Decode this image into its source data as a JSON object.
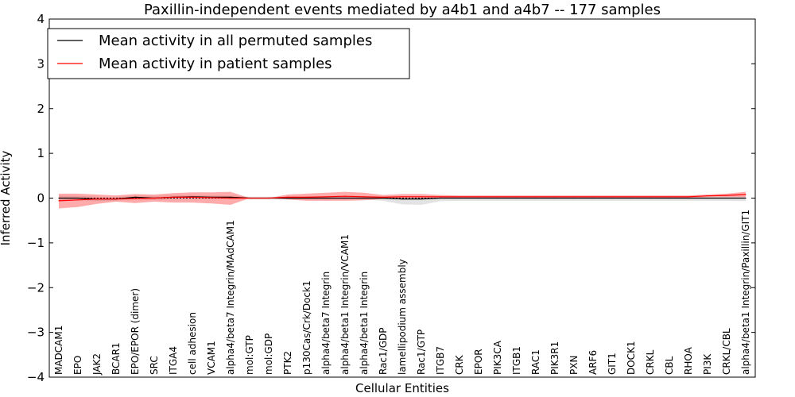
{
  "chart_data": {
    "type": "line",
    "title": "Paxillin-independent events mediated by a4b1 and a4b7 -- 177 samples",
    "xlabel": "Cellular Entities",
    "ylabel": "Inferred Activity",
    "ylim": [
      -4,
      4
    ],
    "yticks": [
      4,
      3,
      2,
      1,
      0,
      -1,
      -2,
      -3,
      -4
    ],
    "ytick_labels": [
      "4",
      "3",
      "2",
      "1",
      "0",
      "−1",
      "−2",
      "−3",
      "−4"
    ],
    "categories": [
      "MADCAM1",
      "EPO",
      "JAK2",
      "BCAR1",
      "EPO/EPOR (dimer)",
      "SRC",
      "ITGA4",
      "cell adhesion",
      "VCAM1",
      "alpha4/beta7 Integrin/MAdCAM1",
      "mol:GTP",
      "mol:GDP",
      "PTK2",
      "p130Cas/Crk/Dock1",
      "alpha4/beta7 Integrin",
      "alpha4/beta1 Integrin/VCAM1",
      "alpha4/beta1 Integrin",
      "Rac1/GDP",
      "lamellipodium assembly",
      "Rac1/GTP",
      "ITGB7",
      "CRK",
      "EPOR",
      "PIK3CA",
      "ITGB1",
      "RAC1",
      "PIK3R1",
      "PXN",
      "ARF6",
      "GIT1",
      "DOCK1",
      "CRKL",
      "CBL",
      "RHOA",
      "PI3K",
      "CRKL/CBL",
      "alpha4/beta1 Integrin/Paxillin/GIT1"
    ],
    "legend": {
      "position": "top-left",
      "entries": [
        {
          "label": "Mean activity in all permuted samples",
          "color": "#000000"
        },
        {
          "label": "Mean activity in patient samples",
          "color": "#ff0000"
        }
      ]
    },
    "series": [
      {
        "name": "Mean activity in all permuted samples",
        "color": "#000000",
        "values": [
          0.0,
          0.0,
          -0.02,
          -0.02,
          0.02,
          0.0,
          0.02,
          0.03,
          0.02,
          0.02,
          0.0,
          0.0,
          0.0,
          0.0,
          0.0,
          0.0,
          0.0,
          0.0,
          -0.02,
          -0.02,
          0.0,
          0.0,
          0.0,
          0.0,
          0.0,
          0.0,
          0.0,
          0.0,
          0.0,
          0.0,
          0.0,
          0.0,
          0.0,
          0.0,
          0.0,
          0.0,
          0.0
        ],
        "band_upper": [
          0.06,
          0.05,
          0.03,
          0.02,
          0.06,
          0.05,
          0.06,
          0.07,
          0.06,
          0.06,
          0.03,
          0.03,
          0.03,
          0.03,
          0.03,
          0.03,
          0.03,
          0.03,
          0.04,
          0.04,
          0.03,
          0.02,
          0.02,
          0.02,
          0.02,
          0.02,
          0.02,
          0.02,
          0.02,
          0.02,
          0.02,
          0.02,
          0.02,
          0.02,
          0.02,
          0.02,
          0.02
        ],
        "band_lower": [
          -0.06,
          -0.05,
          -0.07,
          -0.06,
          -0.02,
          -0.05,
          -0.02,
          -0.01,
          -0.02,
          -0.02,
          -0.03,
          -0.03,
          -0.03,
          -0.03,
          -0.03,
          -0.03,
          -0.03,
          -0.06,
          -0.14,
          -0.15,
          -0.07,
          -0.06,
          -0.06,
          -0.06,
          -0.06,
          -0.06,
          -0.06,
          -0.06,
          -0.06,
          -0.06,
          -0.06,
          -0.06,
          -0.06,
          -0.06,
          -0.06,
          -0.06,
          -0.07
        ]
      },
      {
        "name": "Mean activity in patient samples",
        "color": "#ff0000",
        "values": [
          -0.06,
          -0.04,
          -0.02,
          -0.02,
          -0.01,
          0.0,
          0.02,
          0.02,
          0.01,
          0.0,
          0.0,
          0.0,
          0.02,
          0.02,
          0.03,
          0.04,
          0.03,
          0.02,
          0.03,
          0.03,
          0.03,
          0.03,
          0.03,
          0.03,
          0.03,
          0.03,
          0.03,
          0.03,
          0.03,
          0.03,
          0.03,
          0.03,
          0.03,
          0.03,
          0.05,
          0.06,
          0.08
        ],
        "band_upper": [
          0.1,
          0.1,
          0.08,
          0.06,
          0.09,
          0.08,
          0.11,
          0.13,
          0.13,
          0.14,
          0.0,
          0.0,
          0.08,
          0.1,
          0.12,
          0.14,
          0.12,
          0.07,
          0.09,
          0.09,
          0.07,
          0.06,
          0.06,
          0.06,
          0.06,
          0.06,
          0.06,
          0.06,
          0.06,
          0.06,
          0.06,
          0.06,
          0.06,
          0.06,
          0.08,
          0.1,
          0.14
        ],
        "band_lower": [
          -0.23,
          -0.2,
          -0.13,
          -0.08,
          -0.11,
          -0.08,
          -0.1,
          -0.1,
          -0.12,
          -0.15,
          0.0,
          0.0,
          -0.03,
          -0.06,
          -0.06,
          -0.06,
          -0.05,
          -0.02,
          0.0,
          0.0,
          0.0,
          0.0,
          0.0,
          0.0,
          0.0,
          0.0,
          0.0,
          0.0,
          0.0,
          0.0,
          0.0,
          0.0,
          0.0,
          0.0,
          0.02,
          0.02,
          0.02
        ]
      }
    ]
  }
}
